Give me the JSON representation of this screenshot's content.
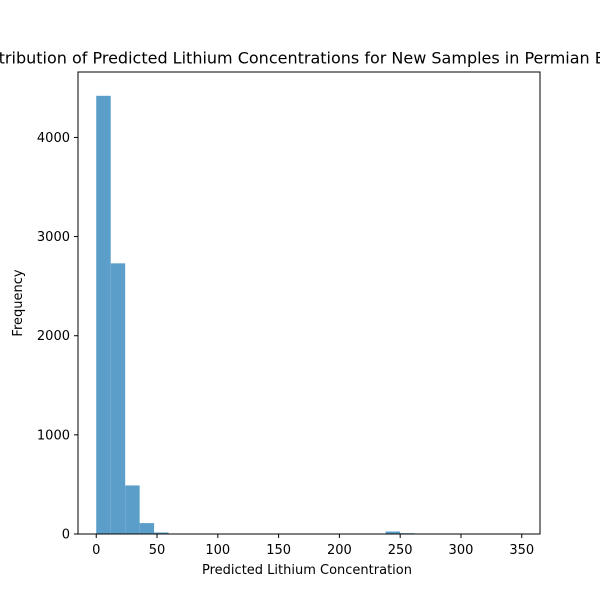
{
  "chart_data": {
    "type": "bar",
    "title": "Distribution of Predicted Lithium Concentrations for New Samples in Permian Basin",
    "xlabel": "Predicted Lithium Concentration",
    "ylabel": "Frequency",
    "xlim": [
      -15,
      365
    ],
    "ylim": [
      0,
      4660
    ],
    "x_ticks": [
      0,
      50,
      100,
      150,
      200,
      250,
      300,
      350
    ],
    "y_ticks": [
      0,
      1000,
      2000,
      3000,
      4000
    ],
    "bin_width": 11.9,
    "bins_start": [
      0,
      11.9,
      23.8,
      35.7,
      47.6,
      59.5,
      71.4,
      83.3,
      95.2,
      107.1,
      119.0,
      130.9,
      142.8,
      154.7,
      166.6,
      178.5,
      190.4,
      202.3,
      214.2,
      226.1,
      238.0,
      249.9,
      261.8,
      273.7,
      285.6,
      297.5,
      309.4,
      321.3,
      333.2,
      345.1
    ],
    "values": [
      4420,
      2730,
      490,
      110,
      15,
      5,
      2,
      1,
      0,
      0,
      0,
      0,
      0,
      0,
      0,
      0,
      0,
      0,
      0,
      0,
      25,
      8,
      0,
      0,
      0,
      0,
      0,
      0,
      0,
      3
    ],
    "bar_color": "#5b9ec9",
    "grid": false,
    "legend": "none"
  }
}
